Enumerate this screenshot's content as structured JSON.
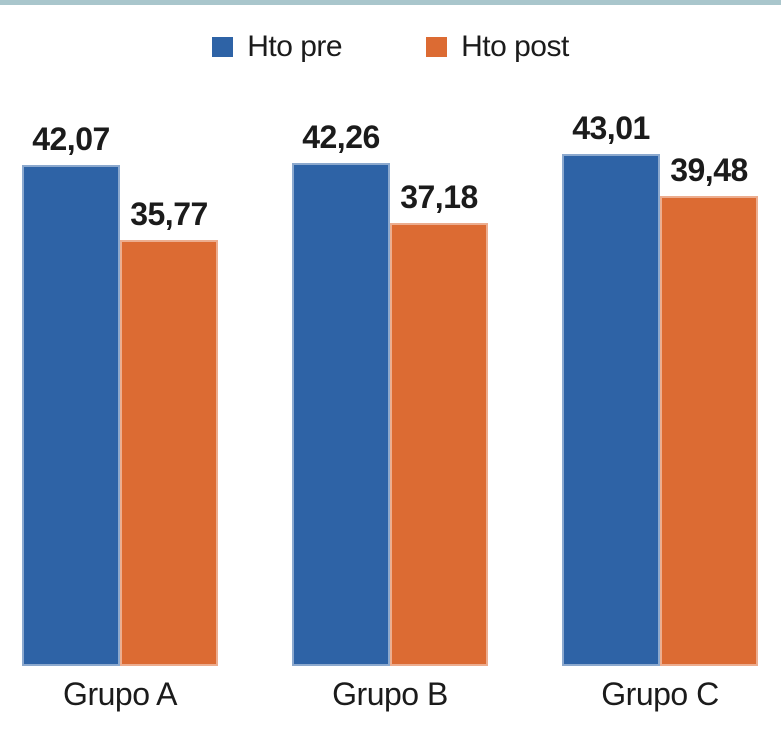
{
  "accent": {
    "top_bar_color": "#A9C6CC"
  },
  "text_color": "#1B1B1B",
  "chart_data": {
    "type": "bar",
    "title": "",
    "xlabel": "",
    "ylabel": "",
    "categories": [
      "Grupo A",
      "Grupo B",
      "Grupo C"
    ],
    "series": [
      {
        "name": "Hto pre",
        "color": "#2E63A6",
        "values": [
          42.07,
          42.26,
          43.01
        ],
        "labels": [
          "42,07",
          "42,26",
          "43,01"
        ]
      },
      {
        "name": "Hto post",
        "color": "#DC6B33",
        "values": [
          35.77,
          37.18,
          39.48
        ],
        "labels": [
          "35,77",
          "37,18",
          "39,48"
        ]
      }
    ],
    "ylim": [
      0,
      44
    ],
    "grid": false,
    "axes_hidden": true,
    "data_labels": true,
    "decimal_separator": ",",
    "legend_position": "top"
  }
}
